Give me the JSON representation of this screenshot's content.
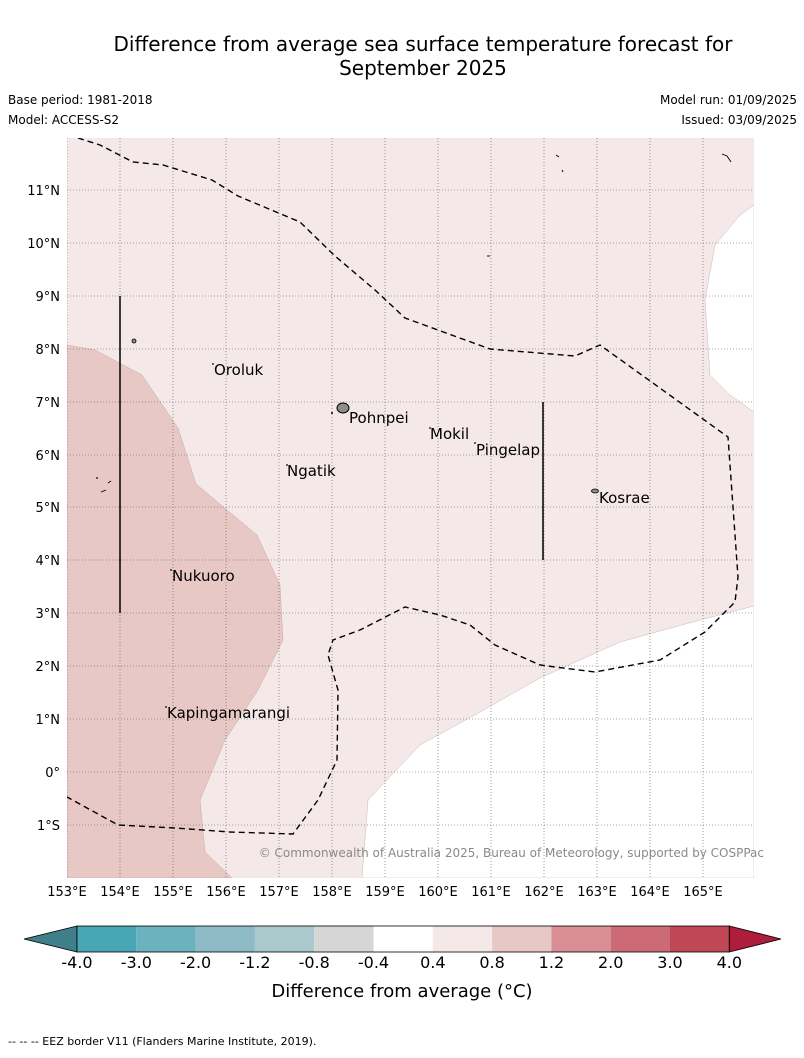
{
  "header": {
    "title_line1": "Difference from average sea surface temperature forecast for",
    "title_line2": "September 2025",
    "base_period": "Base period: 1981-2018",
    "model": "Model: ACCESS-S2",
    "model_run": "Model run: 01/09/2025",
    "issued": "Issued: 03/09/2025"
  },
  "map": {
    "lon_labels": [
      "153°E",
      "154°E",
      "155°E",
      "156°E",
      "157°E",
      "158°E",
      "159°E",
      "160°E",
      "161°E",
      "162°E",
      "163°E",
      "164°E",
      "165°E"
    ],
    "lat_labels": [
      "11°N",
      "10°N",
      "9°N",
      "8°N",
      "7°N",
      "6°N",
      "5°N",
      "4°N",
      "3°N",
      "2°N",
      "1°N",
      "0°",
      "1°S"
    ],
    "places": [
      "Oroluk",
      "Pohnpei",
      "Mokil",
      "Pingelap",
      "Ngatik",
      "Kosrae",
      "Nukuoro",
      "Kapingamarangi"
    ],
    "copyright": "© Commonwealth of Australia 2025, Bureau of Meteorology, supported by COSPPac"
  },
  "colorbar": {
    "tick_labels": [
      "-4.0",
      "-3.0",
      "-2.0",
      "-1.2",
      "-0.8",
      "-0.4",
      "0.4",
      "0.8",
      "1.2",
      "2.0",
      "3.0",
      "4.0"
    ],
    "colors": [
      "#3e7f8a",
      "#49a6b5",
      "#6bb1be",
      "#8ebbc5",
      "#aac9cd",
      "#d6d6d6",
      "#ffffff",
      "#f5e8e8",
      "#e8c8c4",
      "#d98e96",
      "#cc6b76",
      "#c04756",
      "#ae1d3c"
    ],
    "label": "Difference from average (°C)"
  },
  "footnote": "--  --  -- EEZ border V11 (Flanders Marine Institute, 2019)."
}
